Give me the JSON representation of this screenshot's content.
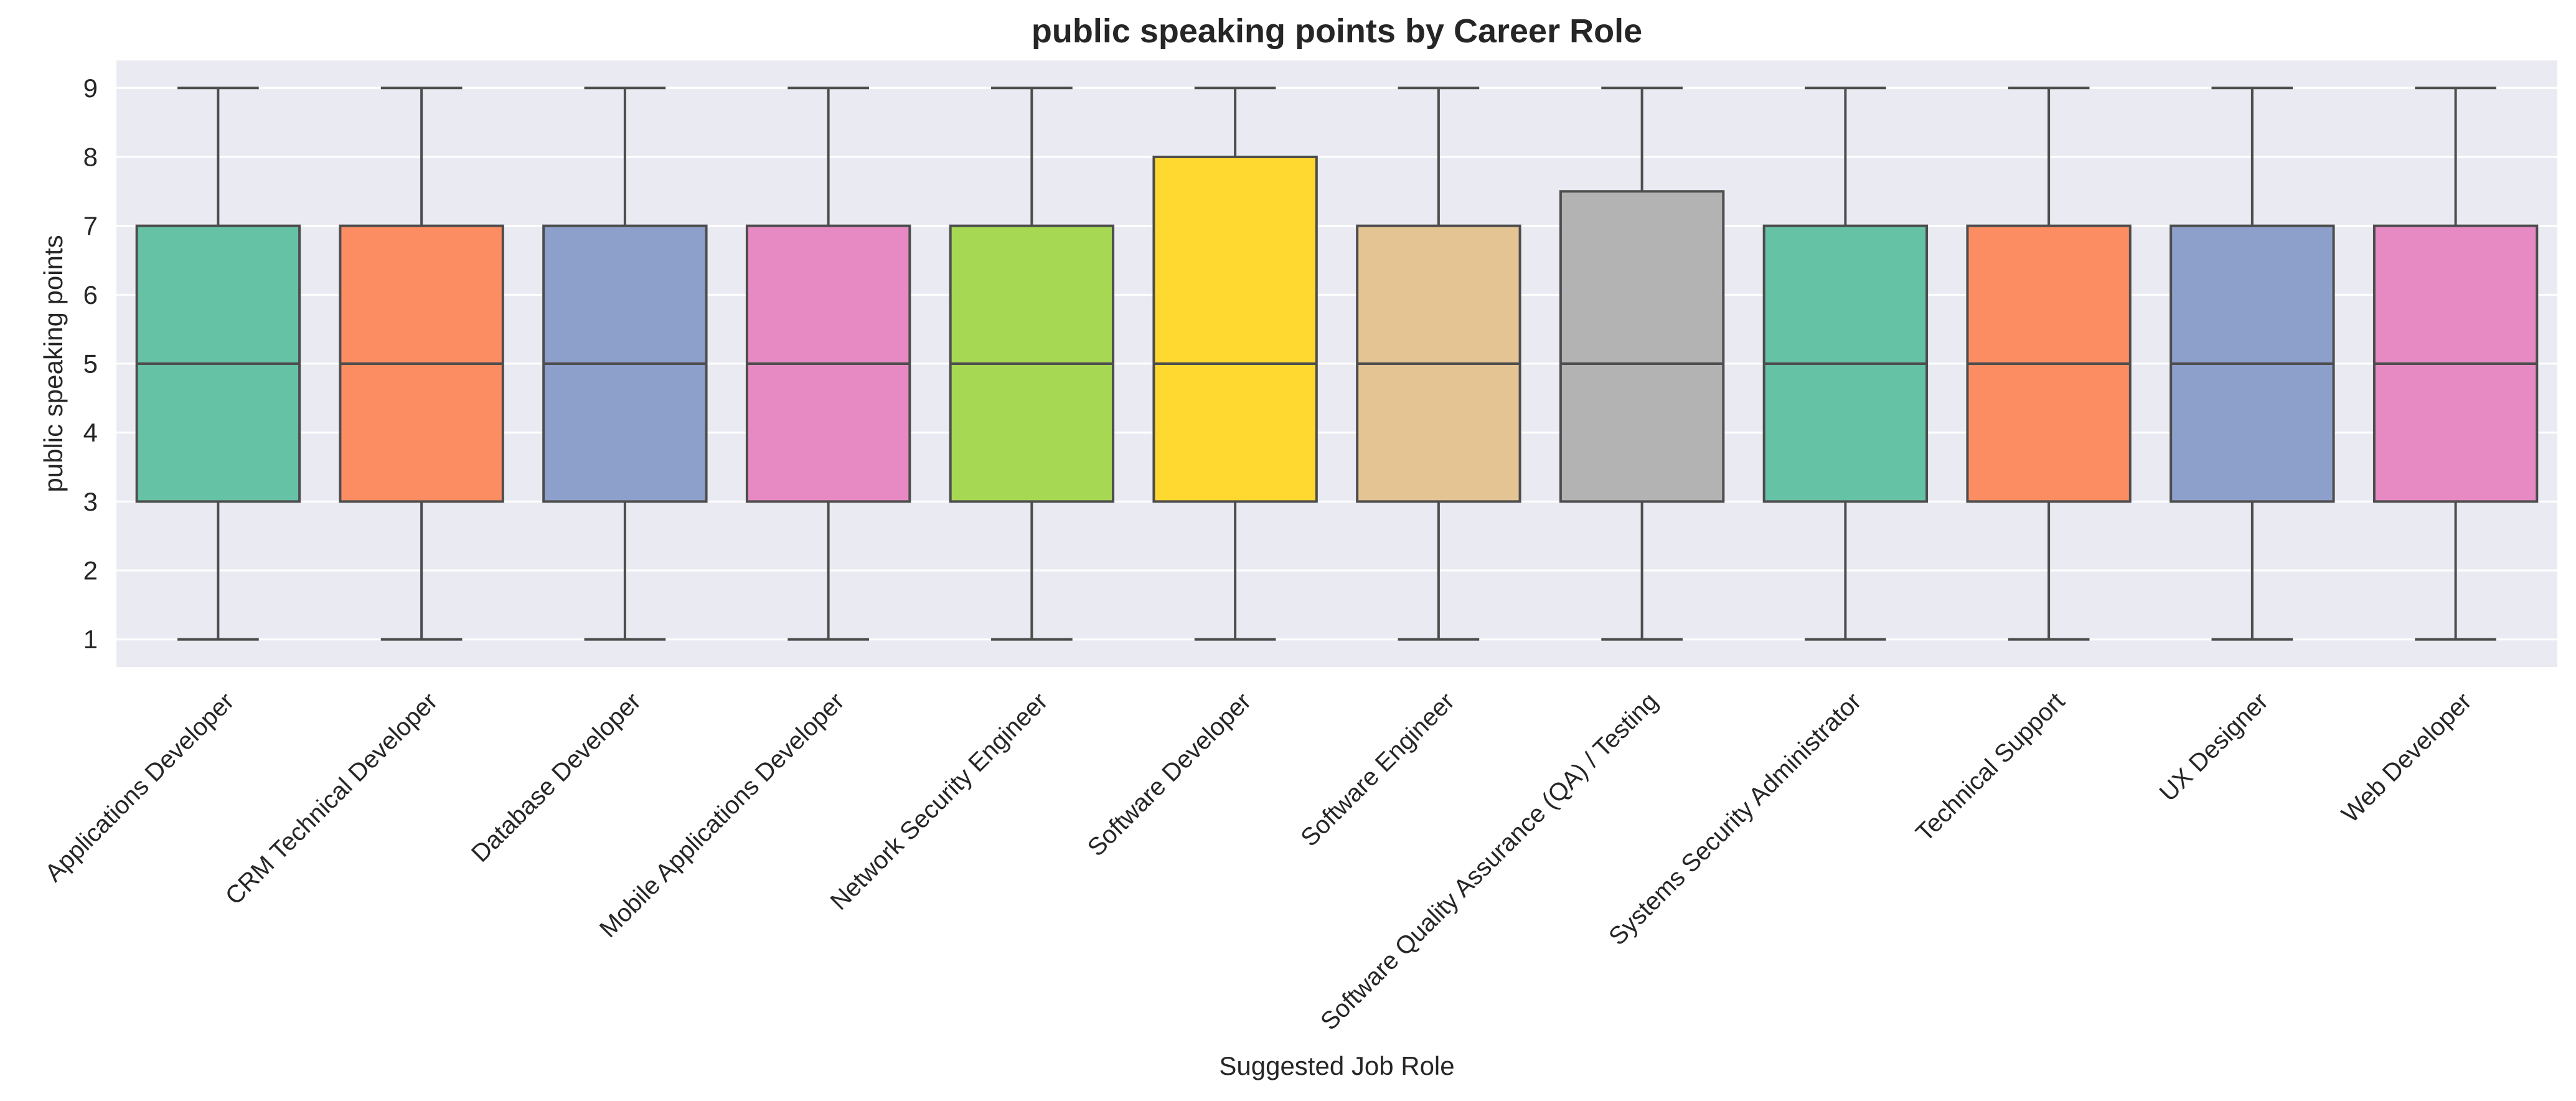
{
  "chart_data": {
    "type": "box",
    "title": "public speaking points by Career Role",
    "xlabel": "Suggested Job Role",
    "ylabel": "public speaking points",
    "ylim": [
      0.6,
      9.4
    ],
    "yticks": [
      1,
      2,
      3,
      4,
      5,
      6,
      7,
      8,
      9
    ],
    "grid": true,
    "legend": "none",
    "categories": [
      "Applications Developer",
      "CRM Technical Developer",
      "Database Developer",
      "Mobile Applications Developer",
      "Network Security Engineer",
      "Software Developer",
      "Software Engineer",
      "Software Quality Assurance (QA) / Testing",
      "Systems Security Administrator",
      "Technical Support",
      "UX Designer",
      "Web Developer"
    ],
    "boxes": [
      {
        "min": 1,
        "q1": 3,
        "median": 5,
        "q3": 7,
        "max": 9
      },
      {
        "min": 1,
        "q1": 3,
        "median": 5,
        "q3": 7,
        "max": 9
      },
      {
        "min": 1,
        "q1": 3,
        "median": 5,
        "q3": 7,
        "max": 9
      },
      {
        "min": 1,
        "q1": 3,
        "median": 5,
        "q3": 7,
        "max": 9
      },
      {
        "min": 1,
        "q1": 3,
        "median": 5,
        "q3": 7,
        "max": 9
      },
      {
        "min": 1,
        "q1": 3,
        "median": 5,
        "q3": 8,
        "max": 9
      },
      {
        "min": 1,
        "q1": 3,
        "median": 5,
        "q3": 7,
        "max": 9
      },
      {
        "min": 1,
        "q1": 3,
        "median": 5,
        "q3": 7.5,
        "max": 9
      },
      {
        "min": 1,
        "q1": 3,
        "median": 5,
        "q3": 7,
        "max": 9
      },
      {
        "min": 1,
        "q1": 3,
        "median": 5,
        "q3": 7,
        "max": 9
      },
      {
        "min": 1,
        "q1": 3,
        "median": 5,
        "q3": 7,
        "max": 9
      },
      {
        "min": 1,
        "q1": 3,
        "median": 5,
        "q3": 7,
        "max": 9
      }
    ],
    "colors": [
      "#66c2a5",
      "#fc8d62",
      "#8da0cb",
      "#e78ac3",
      "#a6d854",
      "#ffd92f",
      "#e5c494",
      "#b3b3b3",
      "#66c2a5",
      "#fc8d62",
      "#8da0cb",
      "#e78ac3"
    ],
    "style": {
      "plot_background": "#eaeaf2",
      "grid_color": "#ffffff",
      "line_color": "#4d4d4d",
      "text_color": "#262626"
    }
  }
}
